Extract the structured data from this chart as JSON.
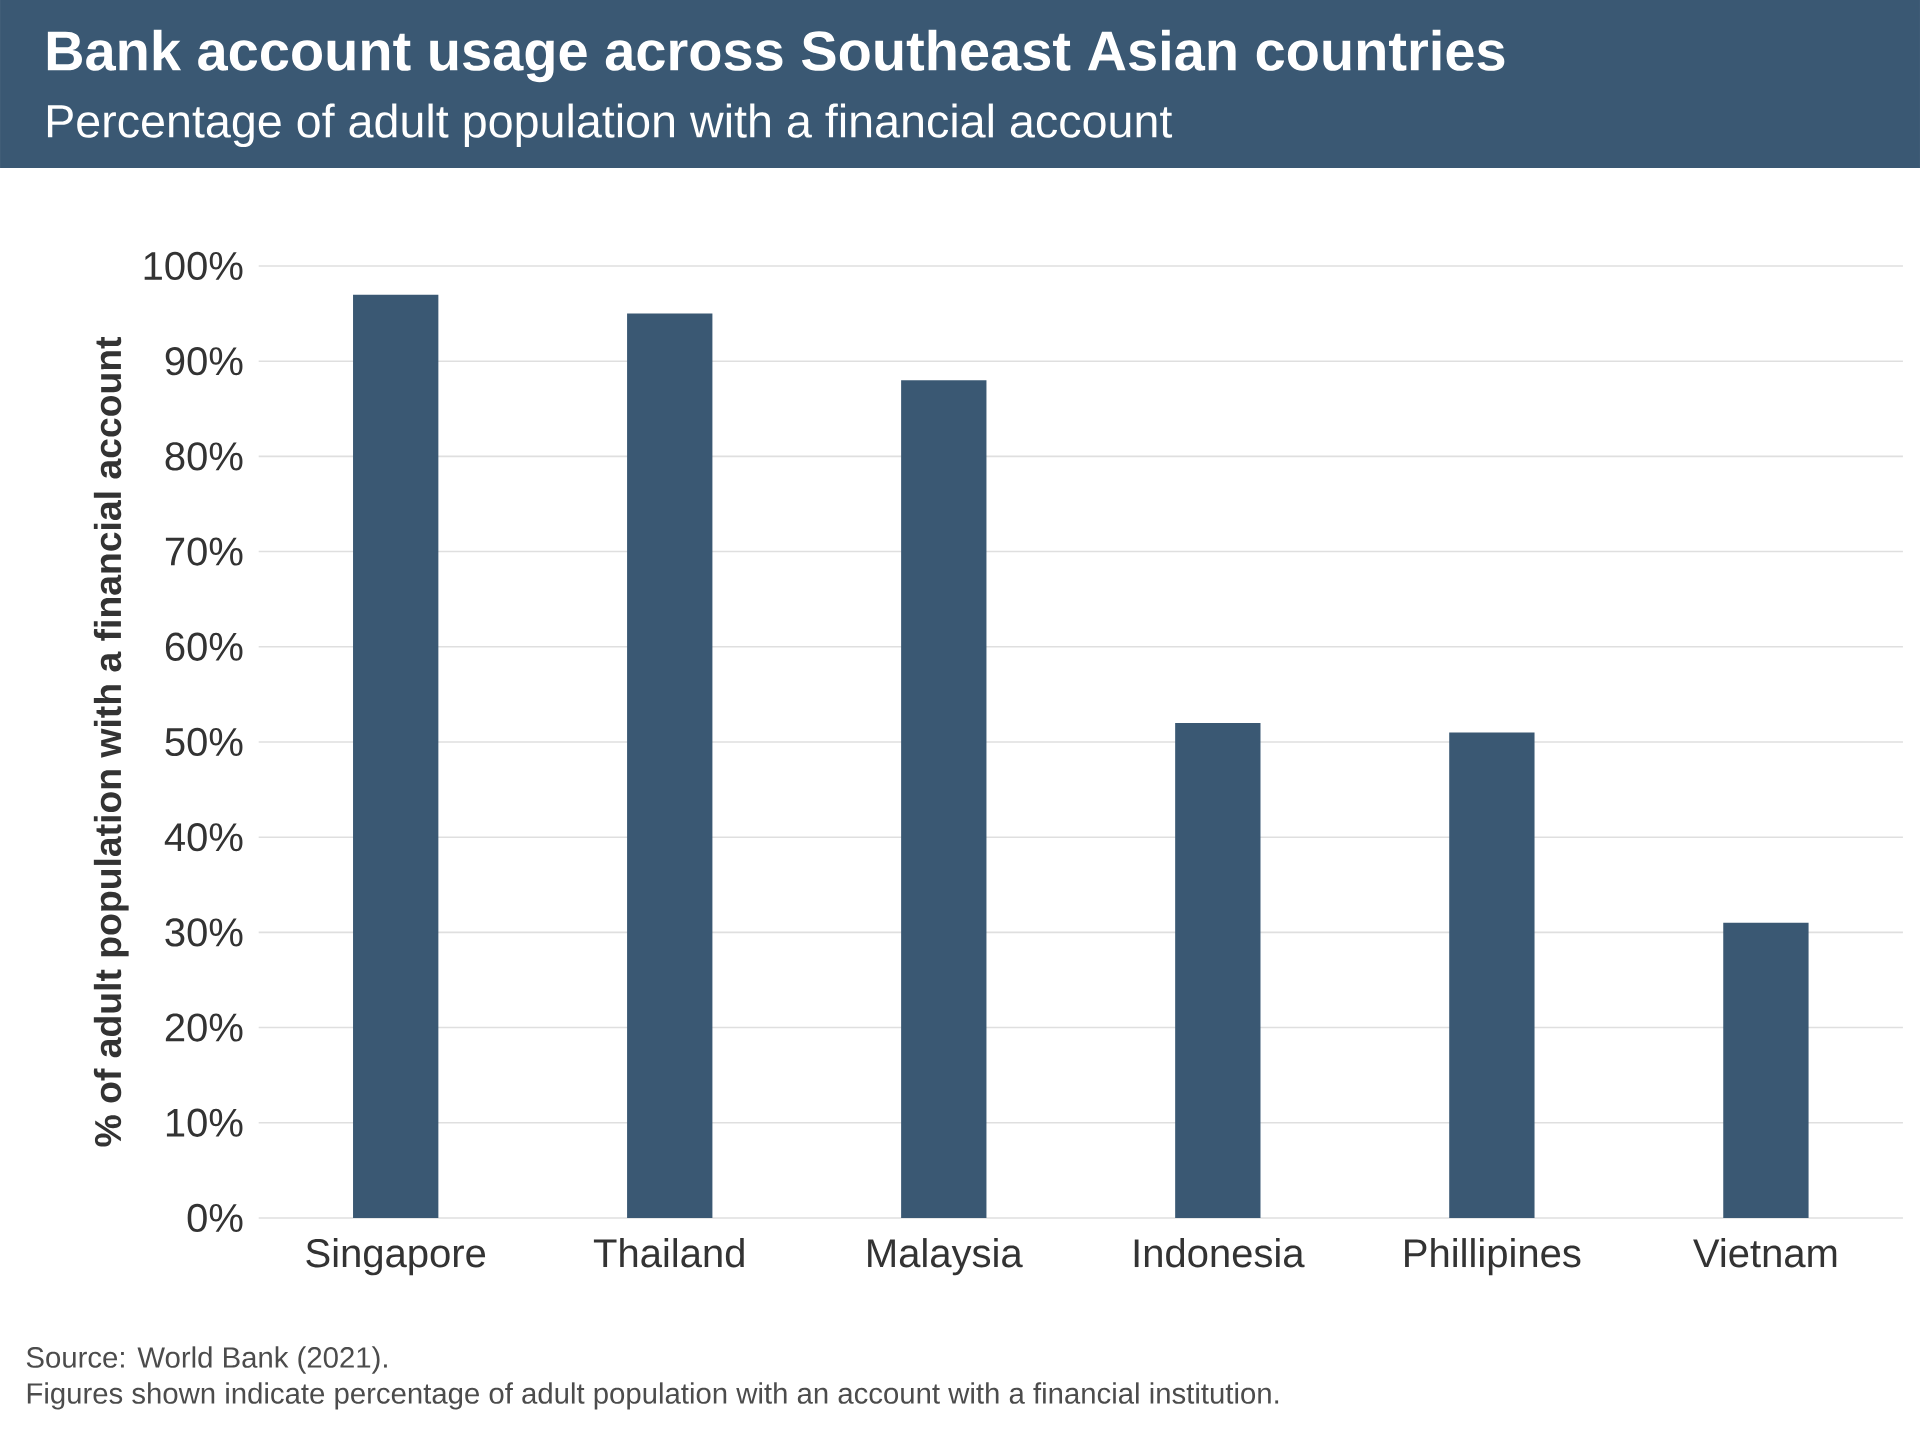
{
  "chart_data": {
    "type": "bar",
    "title": "Bank account usage across Southeast Asian countries",
    "subtitle": "Percentage of adult population with a financial account",
    "ylabel": "% of adult population with a financial account",
    "categories": [
      "Singapore",
      "Thailand",
      "Malaysia",
      "Indonesia",
      "Phillipines",
      "Vietnam"
    ],
    "values": [
      97,
      95,
      88,
      52,
      51,
      31
    ],
    "color": "#3a5873",
    "ylim": [
      0,
      100
    ],
    "yticks": [
      {
        "value": 0,
        "label": "0%"
      },
      {
        "value": 10,
        "label": "10%"
      },
      {
        "value": 20,
        "label": "20%"
      },
      {
        "value": 30,
        "label": "30%"
      },
      {
        "value": 40,
        "label": "40%"
      },
      {
        "value": 50,
        "label": "50%"
      },
      {
        "value": 60,
        "label": "60%"
      },
      {
        "value": 70,
        "label": "70%"
      },
      {
        "value": 80,
        "label": "80%"
      },
      {
        "value": 90,
        "label": "90%"
      },
      {
        "value": 100,
        "label": "100%"
      }
    ],
    "grid": "y",
    "annotations": [
      "Source: World Bank (2021).",
      "Figures shown indicate percentage of adult population with an account with a financial institution."
    ]
  }
}
